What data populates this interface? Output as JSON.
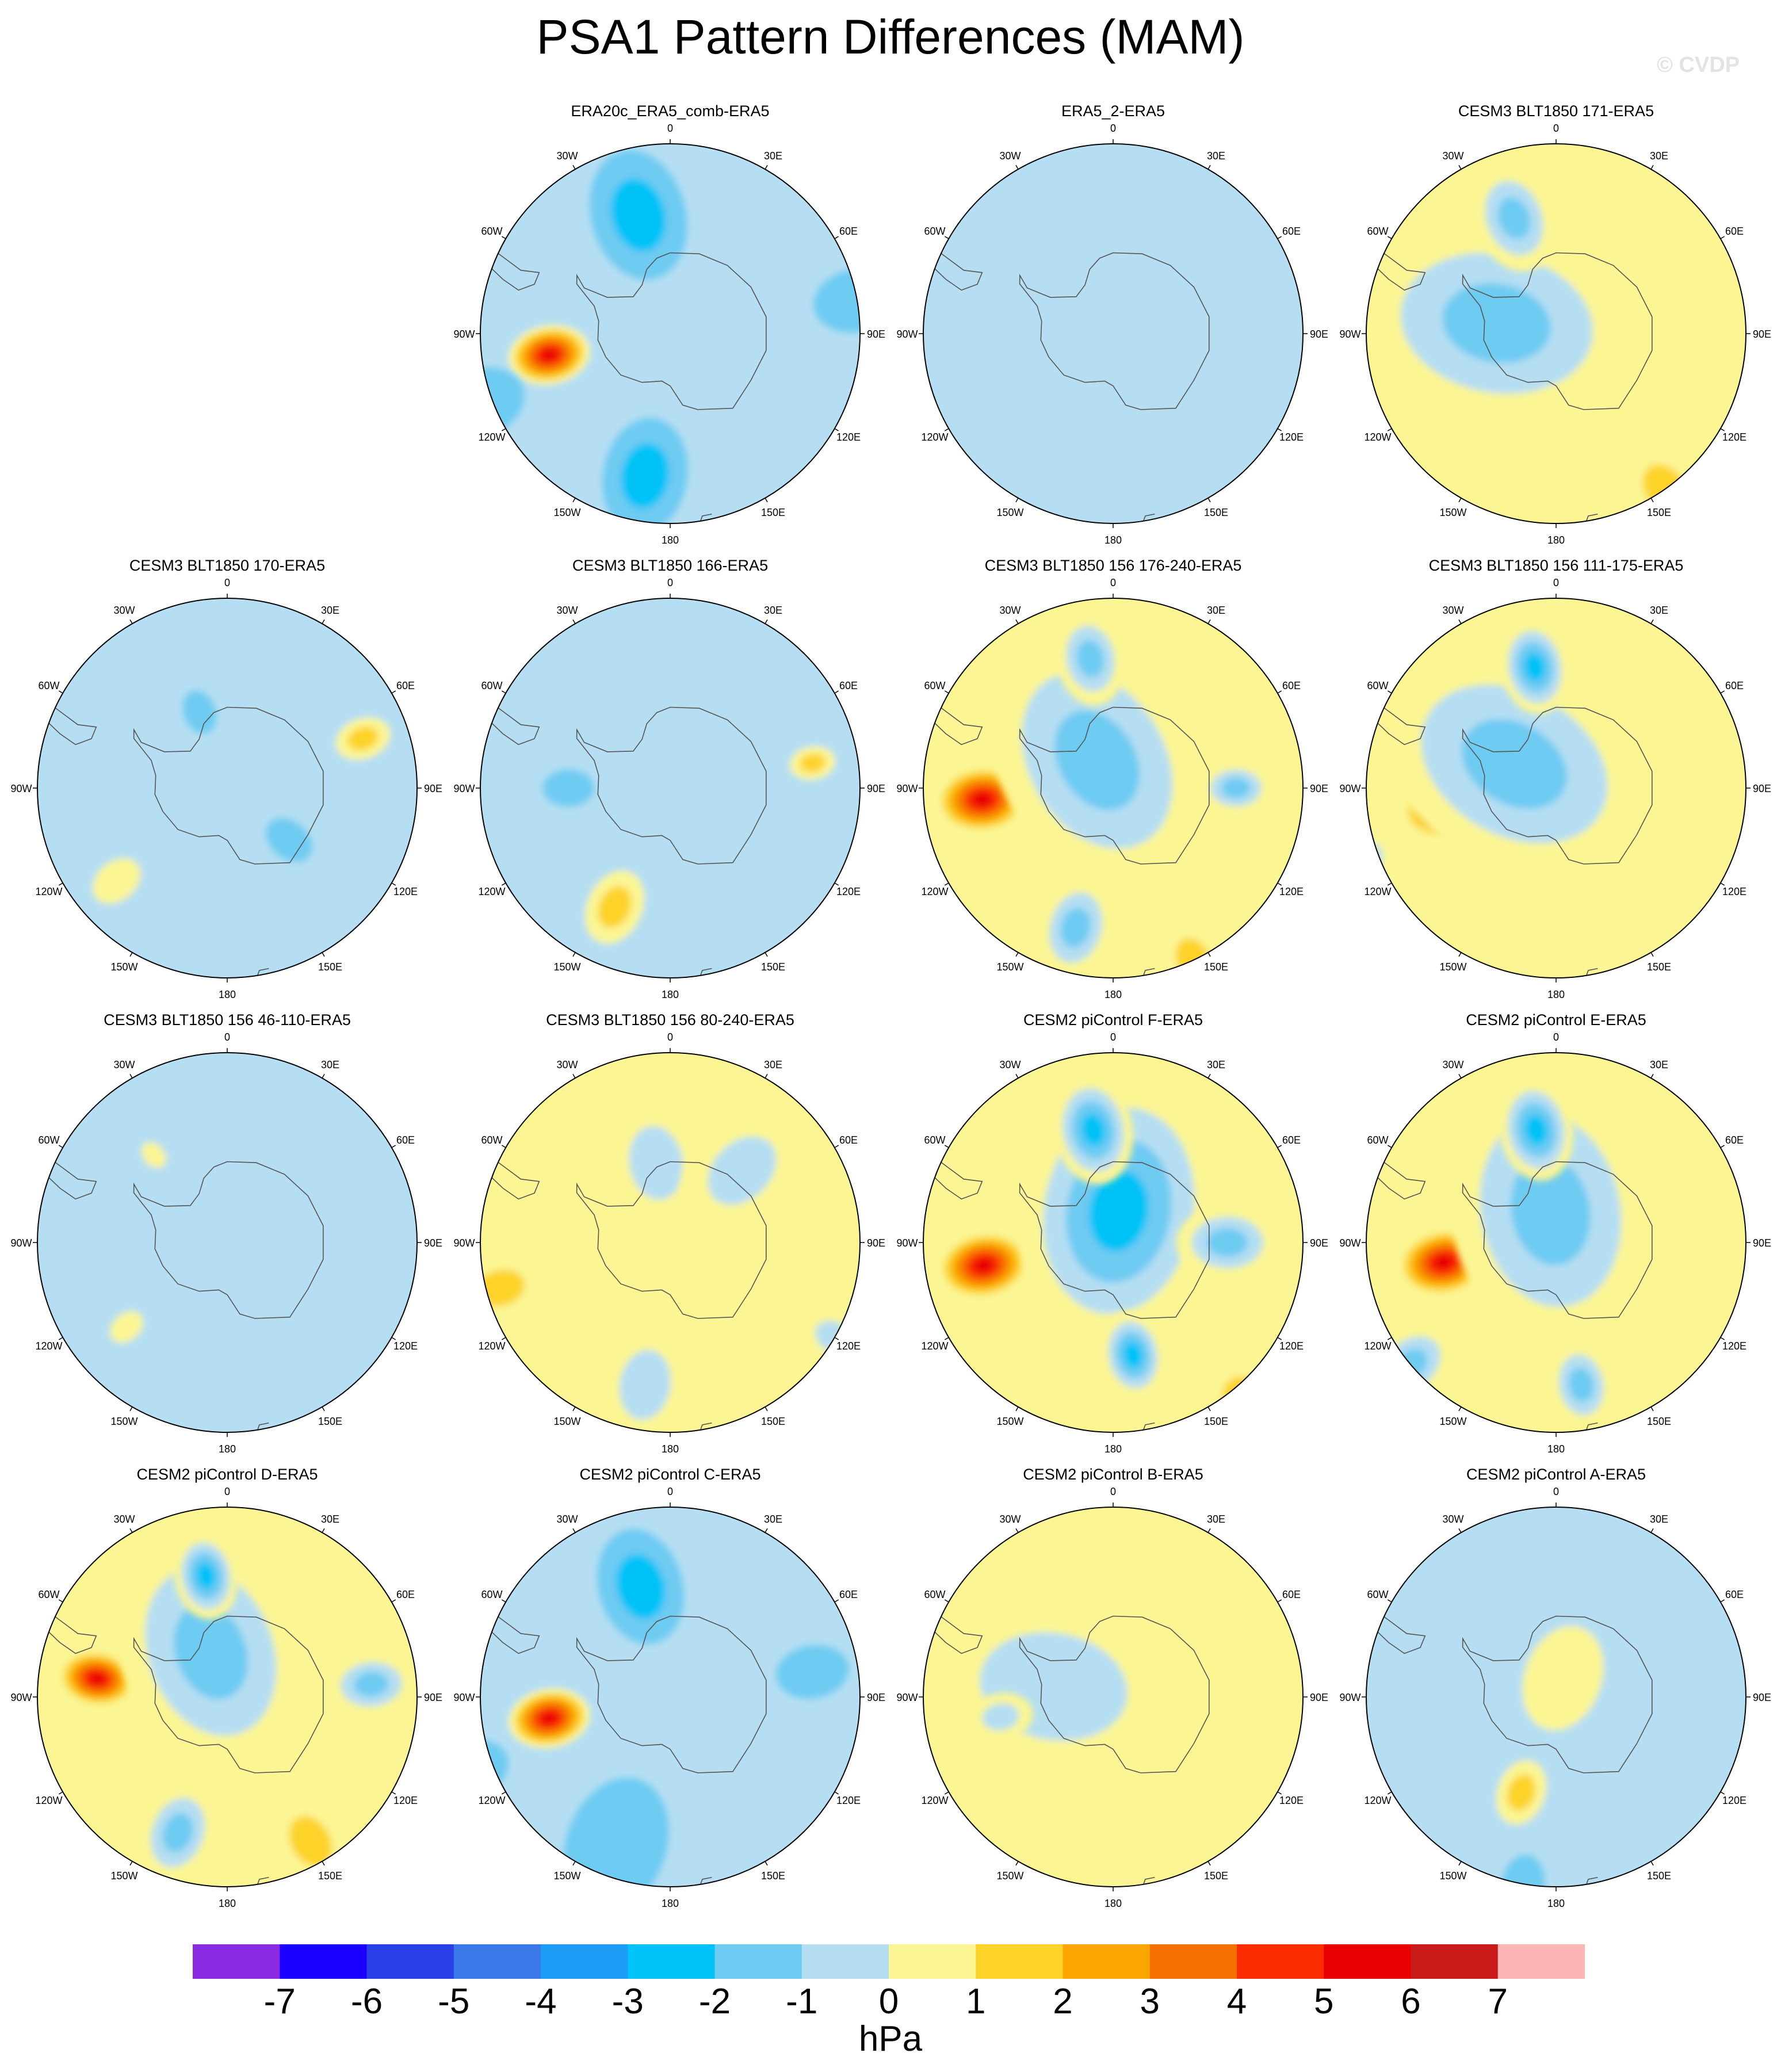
{
  "title": "PSA1 Pattern Differences (MAM)",
  "watermark": "© CVDP",
  "colorbar": {
    "colors": [
      "#8a2be2",
      "#1a00ff",
      "#2a3fe8",
      "#3a78e8",
      "#1c9cf5",
      "#00c2f7",
      "#6ecbf2",
      "#b5def2",
      "#fbf593",
      "#fdd32a",
      "#fba500",
      "#f67200",
      "#fb2d00",
      "#e80000",
      "#c91a1a",
      "#fdb5b5"
    ],
    "labels": [
      "-7",
      "-6",
      "-5",
      "-4",
      "-3",
      "-2",
      "-1",
      "0",
      "1",
      "2",
      "3",
      "4",
      "5",
      "6",
      "7"
    ],
    "units": "hPa"
  },
  "lon_labels": [
    "0",
    "30E",
    "60E",
    "90E",
    "120E",
    "150E",
    "180",
    "150W",
    "120W",
    "90W",
    "60W",
    "30W"
  ],
  "chart_data": [
    {
      "type": "heatmap",
      "title": "ERA20c_ERA5_comb-ERA5",
      "units": "hPa",
      "projection": "south-polar-stereographic",
      "background_level": -1,
      "features": [
        {
          "lon": -100,
          "lat": -60,
          "value": 6.5,
          "extent_km": 1300
        },
        {
          "lon": -15,
          "lat": -60,
          "value": -3.5,
          "extent_km": 1800
        },
        {
          "lon": -170,
          "lat": -55,
          "value": -3.5,
          "extent_km": 1600
        },
        {
          "lon": -110,
          "lat": -42,
          "value": -2,
          "extent_km": 1300
        },
        {
          "lon": 80,
          "lat": -45,
          "value": -2,
          "extent_km": 1200
        },
        {
          "lon": 135,
          "lat": -30,
          "value": 0.5,
          "extent_km": 2200
        },
        {
          "lon": 15,
          "lat": -35,
          "value": 0.5,
          "extent_km": 1400
        },
        {
          "lon": -60,
          "lat": -35,
          "value": 0.5,
          "extent_km": 1300
        }
      ]
    },
    {
      "type": "heatmap",
      "title": "ERA5_2-ERA5",
      "units": "hPa",
      "projection": "south-polar-stereographic",
      "background_level": -1,
      "features": [
        {
          "lon": 0,
          "lat": -82,
          "value": 0.5,
          "extent_km": 1700
        },
        {
          "lon": 140,
          "lat": -35,
          "value": 0.5,
          "extent_km": 2200
        },
        {
          "lon": -165,
          "lat": -40,
          "value": 0.5,
          "extent_km": 1500
        },
        {
          "lon": -45,
          "lat": -45,
          "value": 0.5,
          "extent_km": 1500
        },
        {
          "lon": 20,
          "lat": -40,
          "value": 0.5,
          "extent_km": 1200
        },
        {
          "lon": 85,
          "lat": -45,
          "value": 0.5,
          "extent_km": 700
        }
      ]
    },
    {
      "type": "heatmap",
      "title": "CESM3 BLT1850 171-ERA5",
      "units": "hPa",
      "projection": "south-polar-stereographic",
      "background_level": 0.5,
      "features": [
        {
          "lon": -100,
          "lat": -60,
          "value": 6.5,
          "extent_km": 1300
        },
        {
          "lon": -80,
          "lat": -75,
          "value": -2,
          "extent_km": 3800
        },
        {
          "lon": -20,
          "lat": -60,
          "value": -2.5,
          "extent_km": 1500
        },
        {
          "lon": 145,
          "lat": -45,
          "value": 2,
          "extent_km": 1300
        },
        {
          "lon": 120,
          "lat": -50,
          "value": 1.5,
          "extent_km": 800
        }
      ]
    },
    {
      "type": "heatmap",
      "title": "CESM3 BLT1850 170-ERA5",
      "units": "hPa",
      "projection": "south-polar-stereographic",
      "background_level": -1,
      "features": [
        {
          "lon": 70,
          "lat": -55,
          "value": 2,
          "extent_km": 1100
        },
        {
          "lon": -130,
          "lat": -55,
          "value": 1.5,
          "extent_km": 1300
        },
        {
          "lon": -30,
          "lat": -40,
          "value": 0.5,
          "extent_km": 1800
        },
        {
          "lon": 10,
          "lat": -40,
          "value": 0.5,
          "extent_km": 1400
        },
        {
          "lon": 130,
          "lat": -70,
          "value": -1.5,
          "extent_km": 700
        },
        {
          "lon": -20,
          "lat": -70,
          "value": -1.5,
          "extent_km": 600
        },
        {
          "lon": 160,
          "lat": -40,
          "value": 0.5,
          "extent_km": 1300
        }
      ]
    },
    {
      "type": "heatmap",
      "title": "CESM3 BLT1850 166-ERA5",
      "units": "hPa",
      "projection": "south-polar-stereographic",
      "background_level": -1,
      "features": [
        {
          "lon": -155,
          "lat": -58,
          "value": 2,
          "extent_km": 1500
        },
        {
          "lon": 80,
          "lat": -55,
          "value": 2,
          "extent_km": 900
        },
        {
          "lon": -60,
          "lat": -35,
          "value": 0.5,
          "extent_km": 1600
        },
        {
          "lon": 15,
          "lat": -40,
          "value": 0.5,
          "extent_km": 1500
        },
        {
          "lon": 130,
          "lat": -45,
          "value": 0.5,
          "extent_km": 1500
        },
        {
          "lon": -90,
          "lat": -65,
          "value": -1.5,
          "extent_km": 700
        }
      ]
    },
    {
      "type": "heatmap",
      "title": "CESM3 BLT1850 156 176-240-ERA5",
      "units": "hPa",
      "projection": "south-polar-stereographic",
      "background_level": 0.5,
      "features": [
        {
          "lon": -95,
          "lat": -58,
          "value": 6,
          "extent_km": 1300
        },
        {
          "lon": -30,
          "lat": -82,
          "value": -2,
          "extent_km": 3700
        },
        {
          "lon": -10,
          "lat": -58,
          "value": -2.5,
          "extent_km": 1300
        },
        {
          "lon": 90,
          "lat": -60,
          "value": -2.5,
          "extent_km": 1000
        },
        {
          "lon": -165,
          "lat": -55,
          "value": -2,
          "extent_km": 1400
        },
        {
          "lon": 155,
          "lat": -45,
          "value": 2,
          "extent_km": 1100
        }
      ]
    },
    {
      "type": "heatmap",
      "title": "CESM3 BLT1850 156 111-175-ERA5",
      "units": "hPa",
      "projection": "south-polar-stereographic",
      "background_level": 0.5,
      "features": [
        {
          "lon": -100,
          "lat": -62,
          "value": 5.5,
          "extent_km": 1200
        },
        {
          "lon": -60,
          "lat": -78,
          "value": -2,
          "extent_km": 3900
        },
        {
          "lon": -10,
          "lat": -60,
          "value": -3,
          "extent_km": 1300
        },
        {
          "lon": -110,
          "lat": -40,
          "value": -2,
          "extent_km": 1100
        },
        {
          "lon": 145,
          "lat": -45,
          "value": 1.5,
          "extent_km": 1300
        }
      ]
    },
    {
      "type": "heatmap",
      "title": "CESM3 BLT1850 156 46-110-ERA5",
      "units": "hPa",
      "projection": "south-polar-stereographic",
      "background_level": -1,
      "features": [
        {
          "lon": -130,
          "lat": -58,
          "value": 1.5,
          "extent_km": 900
        },
        {
          "lon": -40,
          "lat": -62,
          "value": 1.5,
          "extent_km": 700
        },
        {
          "lon": -60,
          "lat": -38,
          "value": 0.5,
          "extent_km": 1900
        },
        {
          "lon": 40,
          "lat": -40,
          "value": 0.5,
          "extent_km": 1600
        },
        {
          "lon": 130,
          "lat": -40,
          "value": 0.5,
          "extent_km": 1200
        }
      ]
    },
    {
      "type": "heatmap",
      "title": "CESM3 BLT1850 156 80-240-ERA5",
      "units": "hPa",
      "projection": "south-polar-stereographic",
      "background_level": 0.5,
      "features": [
        {
          "lon": -105,
          "lat": -48,
          "value": 2,
          "extent_km": 1200
        },
        {
          "lon": -10,
          "lat": -70,
          "value": -1,
          "extent_km": 1800
        },
        {
          "lon": 45,
          "lat": -65,
          "value": -1,
          "extent_km": 1900
        },
        {
          "lon": -170,
          "lat": -55,
          "value": -1,
          "extent_km": 1700
        },
        {
          "lon": 120,
          "lat": -45,
          "value": -1,
          "extent_km": 1000
        }
      ]
    },
    {
      "type": "heatmap",
      "title": "CESM2 piControl F-ERA5",
      "units": "hPa",
      "projection": "south-polar-stereographic",
      "background_level": 0.5,
      "features": [
        {
          "lon": -100,
          "lat": -58,
          "value": 6.5,
          "extent_km": 1300
        },
        {
          "lon": 10,
          "lat": -82,
          "value": -3,
          "extent_km": 3700
        },
        {
          "lon": -10,
          "lat": -62,
          "value": -3,
          "extent_km": 1500
        },
        {
          "lon": 170,
          "lat": -62,
          "value": -3.5,
          "extent_km": 1200
        },
        {
          "lon": 90,
          "lat": -62,
          "value": -2,
          "extent_km": 1400
        },
        {
          "lon": 140,
          "lat": -40,
          "value": 2,
          "extent_km": 1600
        }
      ]
    },
    {
      "type": "heatmap",
      "title": "CESM2 piControl E-ERA5",
      "units": "hPa",
      "projection": "south-polar-stereographic",
      "background_level": 0.5,
      "features": [
        {
          "lon": -100,
          "lat": -62,
          "value": 6,
          "extent_km": 1300
        },
        {
          "lon": -10,
          "lat": -82,
          "value": -2.5,
          "extent_km": 3800
        },
        {
          "lon": -10,
          "lat": -62,
          "value": -3.5,
          "extent_km": 1400
        },
        {
          "lon": 170,
          "lat": -55,
          "value": -2.5,
          "extent_km": 1200
        },
        {
          "lon": -130,
          "lat": -45,
          "value": -2,
          "extent_km": 1300
        },
        {
          "lon": 150,
          "lat": -45,
          "value": 1.5,
          "extent_km": 1300
        }
      ]
    },
    {
      "type": "heatmap",
      "title": "CESM2 piControl D-ERA5",
      "units": "hPa",
      "projection": "south-polar-stereographic",
      "background_level": 0.5,
      "features": [
        {
          "lon": -82,
          "lat": -58,
          "value": 6,
          "extent_km": 1100
        },
        {
          "lon": -20,
          "lat": -78,
          "value": -2,
          "extent_km": 3400
        },
        {
          "lon": -10,
          "lat": -60,
          "value": -3,
          "extent_km": 1200
        },
        {
          "lon": 85,
          "lat": -55,
          "value": -2,
          "extent_km": 1200
        },
        {
          "lon": -160,
          "lat": -55,
          "value": -2.5,
          "extent_km": 1400
        },
        {
          "lon": 150,
          "lat": -50,
          "value": 2,
          "extent_km": 1300
        }
      ]
    },
    {
      "type": "heatmap",
      "title": "CESM2 piControl C-ERA5",
      "units": "hPa",
      "projection": "south-polar-stereographic",
      "background_level": -1,
      "features": [
        {
          "lon": -100,
          "lat": -60,
          "value": 6.5,
          "extent_km": 1300
        },
        {
          "lon": -15,
          "lat": -62,
          "value": -3.5,
          "extent_km": 1600
        },
        {
          "lon": -160,
          "lat": -52,
          "value": -2.5,
          "extent_km": 1900
        },
        {
          "lon": -110,
          "lat": -40,
          "value": -2.5,
          "extent_km": 1100
        },
        {
          "lon": 80,
          "lat": -55,
          "value": -2,
          "extent_km": 1000
        },
        {
          "lon": 140,
          "lat": -35,
          "value": 1.5,
          "extent_km": 2200
        }
      ]
    },
    {
      "type": "heatmap",
      "title": "CESM2 piControl B-ERA5",
      "units": "hPa",
      "projection": "south-polar-stereographic",
      "background_level": 0.5,
      "features": [
        {
          "lon": -80,
          "lat": -75,
          "value": -1,
          "extent_km": 3600
        },
        {
          "lon": -100,
          "lat": -62,
          "value": -1.5,
          "extent_km": 900
        },
        {
          "lon": 80,
          "lat": -62,
          "value": 1.5,
          "extent_km": 500
        }
      ]
    },
    {
      "type": "heatmap",
      "title": "CESM2 piControl A-ERA5",
      "units": "hPa",
      "projection": "south-polar-stereographic",
      "background_level": -1,
      "features": [
        {
          "lon": 20,
          "lat": -85,
          "value": 1.5,
          "extent_km": 2600
        },
        {
          "lon": -160,
          "lat": -65,
          "value": 2,
          "extent_km": 1300
        },
        {
          "lon": -170,
          "lat": -45,
          "value": -1.5,
          "extent_km": 800
        },
        {
          "lon": -40,
          "lat": -35,
          "value": 0.5,
          "extent_km": 1600
        },
        {
          "lon": -130,
          "lat": -40,
          "value": 0.5,
          "extent_km": 1200
        }
      ]
    }
  ]
}
